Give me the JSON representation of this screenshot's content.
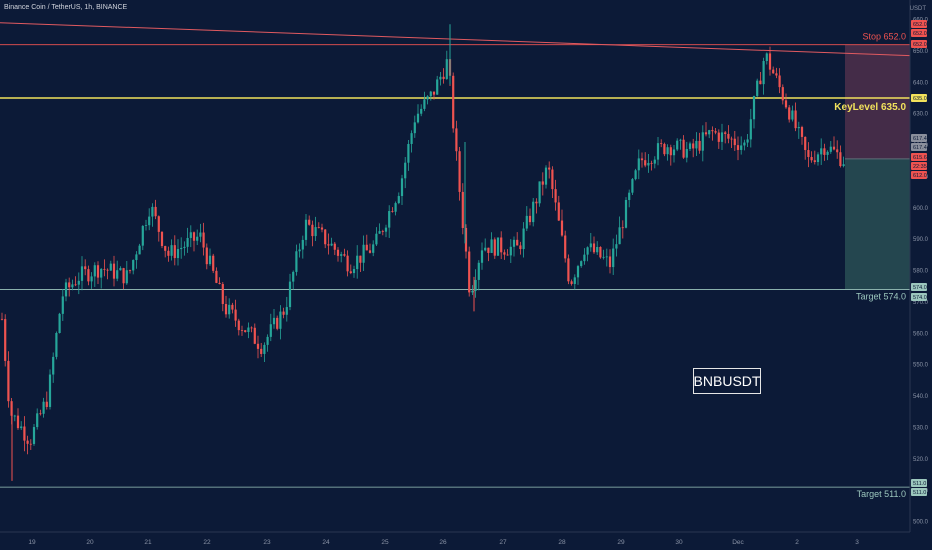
{
  "header": {
    "title": "Binance Coin / TetherUS, 1h, BINANCE"
  },
  "symbol_box": "BNBUSDT",
  "axis_unit": "USDT",
  "colors": {
    "background": "#0c1a37",
    "up": "#26a69a",
    "down": "#ef5350",
    "key_level": "#f2e25c",
    "stop": "#ef5350",
    "target": "#9cc7bd",
    "trend": "#e05a60",
    "risk_zone": "#4a2f4a",
    "reward_zone": "#274b52"
  },
  "chart_data": {
    "type": "candlestick",
    "y_axis": {
      "ticks": [
        500.0,
        510.0,
        520.0,
        530.0,
        540.0,
        550.0,
        560.0,
        570.0,
        580.0,
        590.0,
        600.0,
        610.0,
        620.0,
        630.0,
        640.0,
        650.0,
        660.0
      ],
      "ylim": [
        495,
        665
      ],
      "unit": "USDT"
    },
    "x_axis": {
      "ticks": [
        "19",
        "20",
        "21",
        "22",
        "23",
        "24",
        "25",
        "26",
        "27",
        "28",
        "29",
        "30",
        "Dec",
        "2",
        "3"
      ]
    },
    "price_labels": [
      {
        "value": "652.0",
        "color": "#ef5350"
      },
      {
        "value": "652.0",
        "color": "#ef5350"
      },
      {
        "value": "652.0",
        "color": "#ef5350"
      },
      {
        "value": "635.0",
        "color": "#f2e25c"
      },
      {
        "value": "617.4",
        "color": "#8a8f9c"
      },
      {
        "value": "617.4",
        "color": "#8a8f9c"
      },
      {
        "value": "615.6",
        "color": "#ef5350"
      },
      {
        "value": "22:35",
        "color": "#ef5350"
      },
      {
        "value": "612.0",
        "color": "#ef5350"
      },
      {
        "value": "574.0",
        "color": "#9cc7bd"
      },
      {
        "value": "574.0",
        "color": "#9cc7bd"
      },
      {
        "value": "511.0",
        "color": "#9cc7bd"
      },
      {
        "value": "511.0",
        "color": "#9cc7bd"
      }
    ],
    "levels": [
      {
        "name": "Stop",
        "label": "Stop 652.0",
        "value": 652.0
      },
      {
        "name": "KeyLevel",
        "label": "KeyLevel 635.0",
        "value": 635.0
      },
      {
        "name": "Target",
        "label": "Target 574.0",
        "value": 574.0
      },
      {
        "name": "Target",
        "label": "Target 511.0",
        "value": 511.0
      }
    ],
    "trendline": {
      "start": 659.0,
      "end": 648.5
    },
    "position": {
      "entry": 615.6,
      "stop": 652.0,
      "target": 574.0
    },
    "close_price": 615.6,
    "anchors": [
      [
        0,
        572
      ],
      [
        10,
        535
      ],
      [
        30,
        526
      ],
      [
        48,
        540
      ],
      [
        62,
        572
      ],
      [
        78,
        578
      ],
      [
        100,
        581
      ],
      [
        128,
        578
      ],
      [
        150,
        601
      ],
      [
        168,
        585
      ],
      [
        200,
        591
      ],
      [
        225,
        568
      ],
      [
        262,
        556
      ],
      [
        285,
        568
      ],
      [
        305,
        595
      ],
      [
        325,
        590
      ],
      [
        350,
        582
      ],
      [
        375,
        588
      ],
      [
        400,
        607
      ],
      [
        415,
        629
      ],
      [
        432,
        636
      ],
      [
        448,
        647
      ],
      [
        455,
        620
      ],
      [
        470,
        573
      ],
      [
        482,
        588
      ],
      [
        518,
        587
      ],
      [
        548,
        613
      ],
      [
        570,
        576
      ],
      [
        585,
        588
      ],
      [
        610,
        582
      ],
      [
        640,
        615
      ],
      [
        668,
        620
      ],
      [
        690,
        618
      ],
      [
        712,
        624
      ],
      [
        745,
        620
      ],
      [
        765,
        649
      ],
      [
        788,
        632
      ],
      [
        808,
        615
      ],
      [
        825,
        620
      ],
      [
        845,
        615
      ]
    ],
    "spikes": [
      {
        "x": 450,
        "high": 658.5
      },
      {
        "x": 465,
        "high": 621
      },
      {
        "x": 12,
        "low": 513
      },
      {
        "x": 474,
        "low": 567
      }
    ]
  }
}
